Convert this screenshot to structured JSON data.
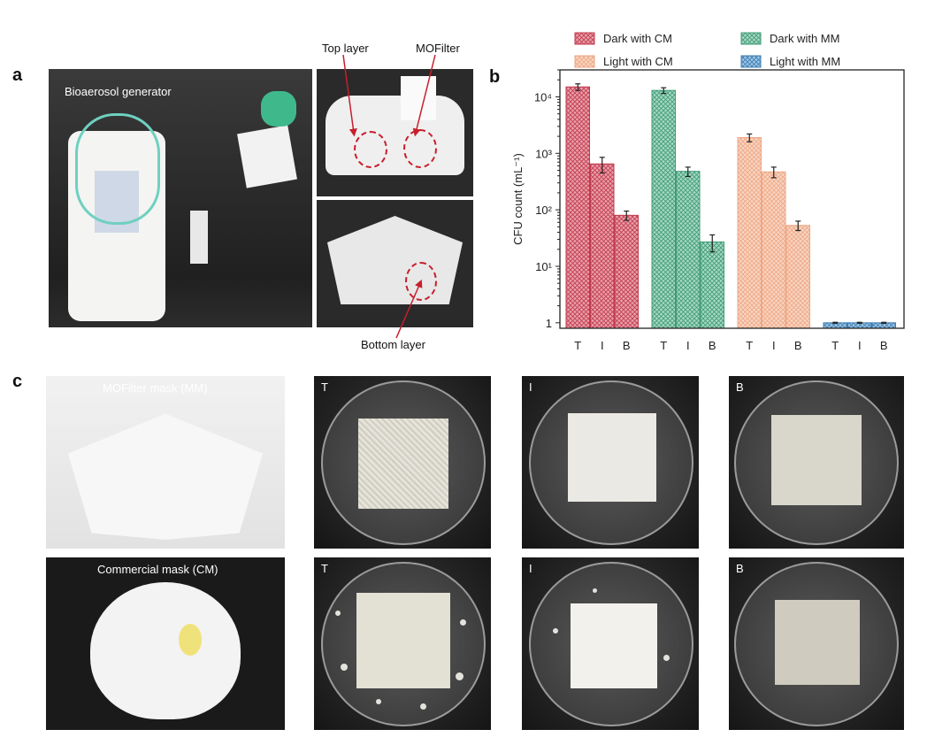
{
  "panels": {
    "a": {
      "letter": "a",
      "generator_label": "Bioaerosol generator",
      "top_layer_label": "Top layer",
      "mofilter_label": "MOFilter",
      "bottom_layer_label": "Bottom layer"
    },
    "b": {
      "letter": "b"
    },
    "c": {
      "letter": "c",
      "mm_label": "MOFilter mask (MM)",
      "cm_label": "Commercial mask (CM)",
      "dish_labels": [
        "T",
        "I",
        "B"
      ]
    }
  },
  "chart_data": {
    "type": "bar",
    "ylabel": "CFU count (mL⁻¹)",
    "yscale": "log",
    "ylim": [
      0.8,
      30000
    ],
    "yticks": [
      {
        "value": 1,
        "label": "1"
      },
      {
        "value": 10,
        "label": "10¹"
      },
      {
        "value": 100,
        "label": "10²"
      },
      {
        "value": 1000,
        "label": "10³"
      },
      {
        "value": 10000,
        "label": "10⁴"
      }
    ],
    "categories": [
      "T",
      "I",
      "B"
    ],
    "legend_position": "top",
    "grid": false,
    "series": [
      {
        "name": "Dark with CM",
        "color": "#c23a4e",
        "fill": "#e8a0aa",
        "values": [
          15000,
          650,
          80
        ],
        "errors": [
          2000,
          200,
          15
        ]
      },
      {
        "name": "Dark with MM",
        "color": "#3f9a77",
        "fill": "#a6d8c2",
        "values": [
          13000,
          480,
          27
        ],
        "errors": [
          1500,
          90,
          9
        ]
      },
      {
        "name": "Light with CM",
        "color": "#eea684",
        "fill": "#f8d6c3",
        "values": [
          1900,
          470,
          53
        ],
        "errors": [
          300,
          100,
          10
        ]
      },
      {
        "name": "Light with MM",
        "color": "#3d7db3",
        "fill": "#9cc4e3",
        "values": [
          1,
          1,
          1
        ],
        "errors": [
          0.02,
          0.02,
          0.02
        ]
      }
    ]
  }
}
